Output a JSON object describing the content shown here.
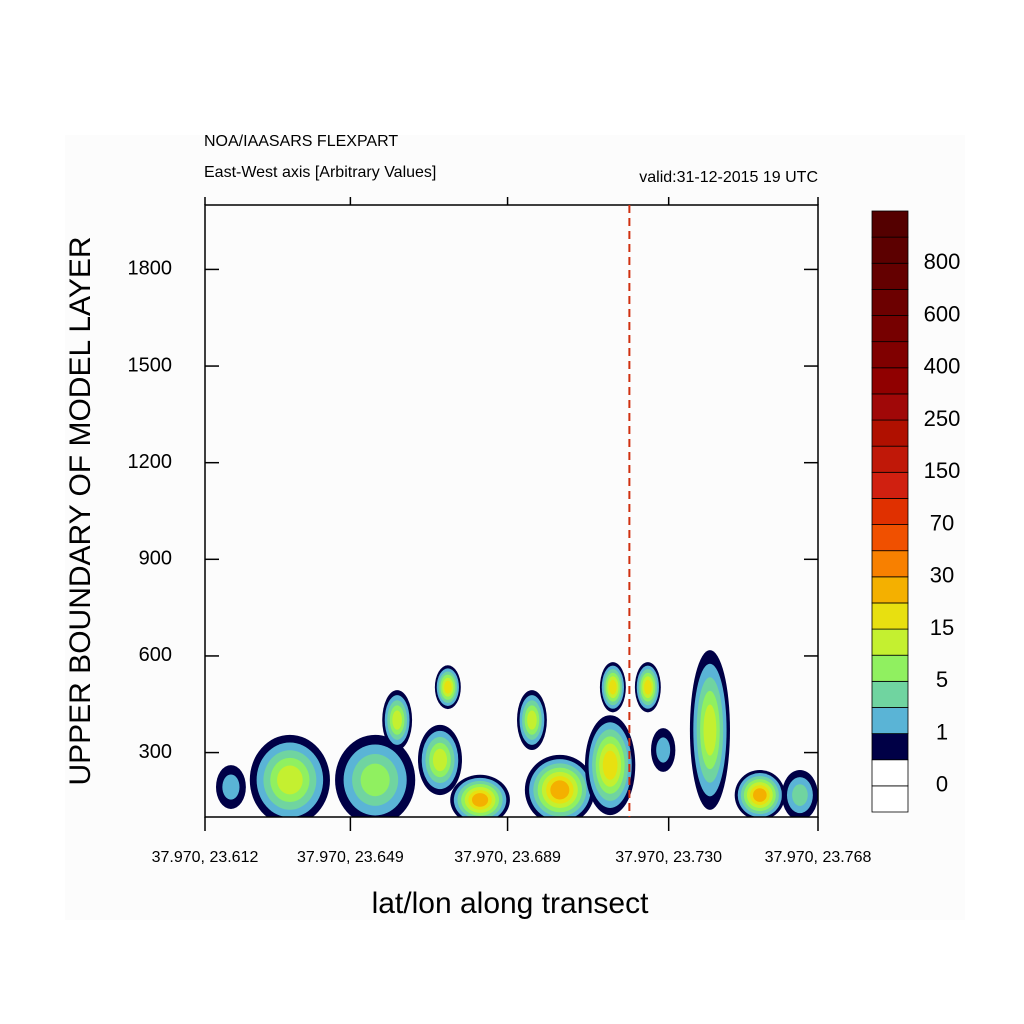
{
  "chart_data": {
    "type": "contour",
    "title": "NOA/IAASARS FLEXPART",
    "subtitle": "East-West axis [Arbitrary Values]",
    "valid_label": "valid:31-12-2015 19 UTC",
    "xlabel": "lat/lon along transect",
    "ylabel": "UPPER BOUNDARY OF MODEL LAYER",
    "xlim": [
      23.612,
      23.768
    ],
    "xticks": [
      {
        "value": 23.612,
        "label": "37.970, 23.612"
      },
      {
        "value": 23.649,
        "label": "37.970, 23.649"
      },
      {
        "value": 23.689,
        "label": "37.970, 23.689"
      },
      {
        "value": 23.73,
        "label": "37.970, 23.730"
      },
      {
        "value": 23.768,
        "label": "37.970, 23.768"
      }
    ],
    "ylim": [
      100,
      2000
    ],
    "yticks": [
      300,
      600,
      900,
      1200,
      1500,
      1800
    ],
    "marker_line": {
      "x": 23.72,
      "color": "#d03010"
    },
    "colorbar": {
      "colors": [
        "#ffffff",
        "#ffffff",
        "#000046",
        "#5ab4d6",
        "#70d4a0",
        "#90f060",
        "#c4f030",
        "#e8e010",
        "#f4b000",
        "#f88000",
        "#f05000",
        "#e03000",
        "#d02010",
        "#c01808",
        "#b01000",
        "#a00808",
        "#900000",
        "#800000",
        "#760000",
        "#6c0000",
        "#640000",
        "#5c0000",
        "#540000"
      ],
      "labels": [
        "0",
        "1",
        "5",
        "15",
        "30",
        "70",
        "150",
        "250",
        "400",
        "600",
        "800"
      ]
    },
    "blobs": [
      {
        "x": 23.6186,
        "y": 193,
        "dx": 0.0038,
        "dy": 68,
        "level": 3
      },
      {
        "x": 23.6336,
        "y": 215,
        "dx": 0.0102,
        "dy": 140,
        "level": 6
      },
      {
        "x": 23.6553,
        "y": 215,
        "dx": 0.0102,
        "dy": 140,
        "level": 5
      },
      {
        "x": 23.6609,
        "y": 401,
        "dx": 0.0038,
        "dy": 93,
        "level": 6
      },
      {
        "x": 23.6718,
        "y": 277,
        "dx": 0.0056,
        "dy": 109,
        "level": 6
      },
      {
        "x": 23.6738,
        "y": 503,
        "dx": 0.0033,
        "dy": 68,
        "level": 7
      },
      {
        "x": 23.682,
        "y": 153,
        "dx": 0.0076,
        "dy": 78,
        "level": 8
      },
      {
        "x": 23.6952,
        "y": 401,
        "dx": 0.0038,
        "dy": 93,
        "level": 6
      },
      {
        "x": 23.7023,
        "y": 184,
        "dx": 0.0089,
        "dy": 109,
        "level": 8
      },
      {
        "x": 23.7151,
        "y": 261,
        "dx": 0.0064,
        "dy": 155,
        "level": 7
      },
      {
        "x": 23.7158,
        "y": 503,
        "dx": 0.0033,
        "dy": 78,
        "level": 7
      },
      {
        "x": 23.7247,
        "y": 503,
        "dx": 0.0033,
        "dy": 78,
        "level": 7
      },
      {
        "x": 23.7286,
        "y": 308,
        "dx": 0.0031,
        "dy": 68,
        "level": 3
      },
      {
        "x": 23.7405,
        "y": 370,
        "dx": 0.0051,
        "dy": 248,
        "level": 6
      },
      {
        "x": 23.7532,
        "y": 168,
        "dx": 0.0064,
        "dy": 78,
        "level": 8
      },
      {
        "x": 23.7634,
        "y": 168,
        "dx": 0.0046,
        "dy": 78,
        "level": 4
      }
    ]
  }
}
